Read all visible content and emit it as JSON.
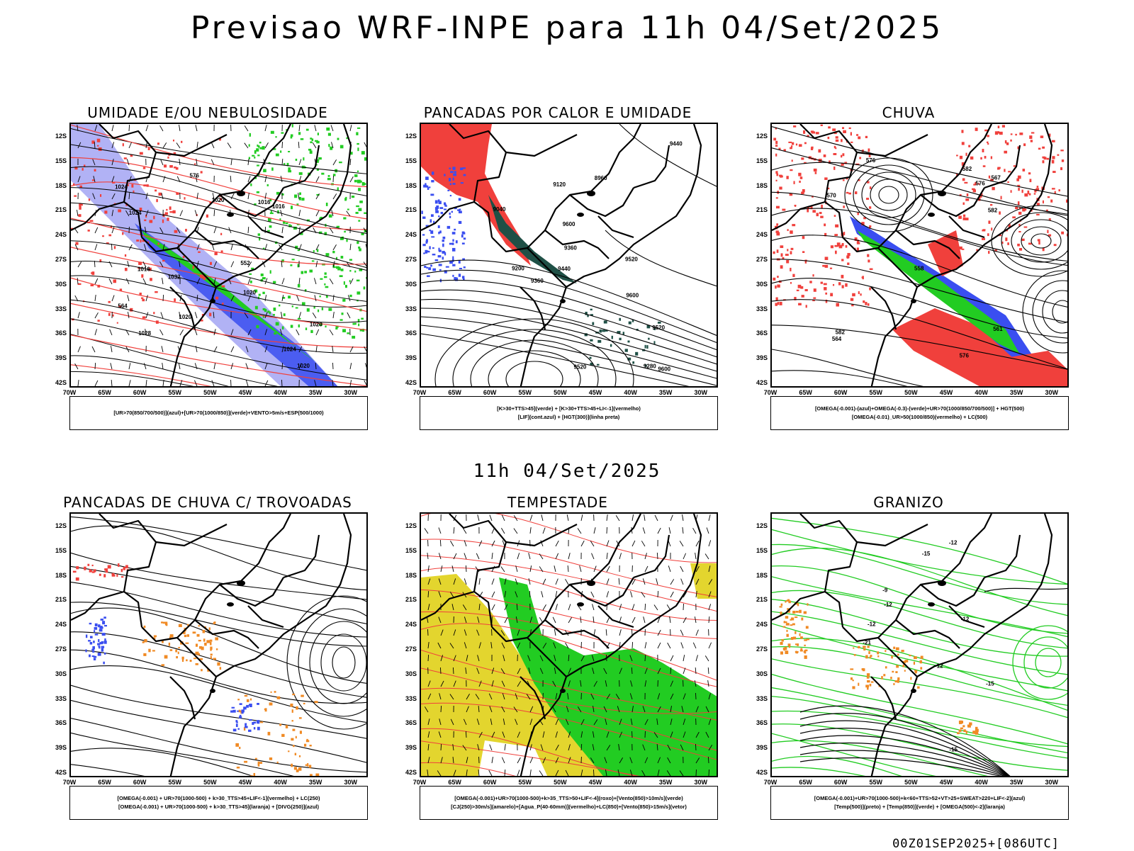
{
  "main_title": "Previsao WRF-INPE  para 11h 04/Set/2025",
  "mid_title": "11h 04/Set/2025",
  "footer": "00Z01SEP2025+[086UTC]",
  "axes": {
    "y": [
      "12S",
      "15S",
      "18S",
      "21S",
      "24S",
      "27S",
      "30S",
      "33S",
      "36S",
      "39S",
      "42S"
    ],
    "x": [
      "70W",
      "65W",
      "60W",
      "55W",
      "50W",
      "45W",
      "40W",
      "35W",
      "30W"
    ]
  },
  "colors": {
    "blue": "#3a4ef0",
    "lightblue": "#a9aaf4",
    "green": "#22cc22",
    "red": "#f0403c",
    "darkgreen": "#1f5046",
    "yellow": "#e3d52e",
    "orange": "#f08a24"
  },
  "panels": [
    {
      "id": "umidade",
      "title": "UMIDADE E/OU NEBULOSIDADE",
      "legend": [
        "[UR>70(850/700/500)](azul)+[UR>70(1000/850)](verde)+VENTO>5m/s+ESP(500/1000)"
      ],
      "contour_labels": [
        "1020",
        "1016",
        "1020",
        "1024",
        "1020",
        "1024",
        "1028",
        "1032",
        "1016",
        "1020",
        "1016",
        "1024",
        "1020",
        "576",
        "552",
        "564"
      ]
    },
    {
      "id": "pancadas-calor",
      "title": "PANCADAS POR CALOR E UMIDADE",
      "legend": [
        "[K>30+TTS>45](verde) + [K>30+TTS>45+LI<-1](vermelho)",
        "[LIF](cont.azul) + [HGT(300)](linha preta)"
      ],
      "contour_labels": [
        "9600",
        "9600",
        "9600",
        "9520",
        "9520",
        "9440",
        "9360",
        "9360",
        "9280",
        "9200",
        "9120",
        "9040",
        "8960",
        "9440",
        "9520"
      ]
    },
    {
      "id": "chuva",
      "title": "CHUVA",
      "legend": [
        "[OMEGA(-0.001)-(azul)+OMEGA(-0.3)-(verde)+UR>70(1000/850/700/500)] + HGT(500)",
        "[OMEGA(-0.01)_UR>50(1000/850)(vermelho) + LC(500)"
      ],
      "contour_labels": [
        "576",
        "582",
        "576",
        "570",
        "567",
        "564",
        "561",
        "558",
        "582",
        "576",
        "582"
      ]
    },
    {
      "id": "trovoadas",
      "title": "PANCADAS DE CHUVA C/ TROVOADAS",
      "legend": [
        "[OMEGA(-0.001) + UR>70(1000-500) + k>30_TTS>45+LIF<-1](vermelho) + LC(250)",
        "[OMEGA(-0.001) + UR>70(1000-500) + k>30_TTS>45](laranja) + [DIVG(250)](azul)"
      ],
      "contour_labels": []
    },
    {
      "id": "tempestade",
      "title": "TEMPESTADE",
      "legend": [
        "[OMEGA(-0.001)+UR>70(1000-500)+k>35_TTS>50+LIF<-4](roxo)+[Vento(850)>10m/s](verde)",
        "[CJ(250)>30m/s](amarelo)+[Agua_P(40-60mm)](vermelho)+LC(850)+[Vento(850)>15m/s](vetor)"
      ],
      "contour_labels": []
    },
    {
      "id": "granizo",
      "title": "GRANIZO",
      "legend": [
        "[OMEGA(-0.001)+UR>70(1000-500)+k<60+TTS>52+VT>25+SWEAT>220+LIF<-2](azul)",
        "[Temp(500)](preto) + [Temp(850)](verde) + [OMEGA(500)<-2](laranja)"
      ],
      "contour_labels": [
        "-15",
        "-12",
        "-12",
        "-12",
        "-12",
        "-15",
        "-21",
        "-12",
        "-9",
        "-15"
      ]
    }
  ]
}
